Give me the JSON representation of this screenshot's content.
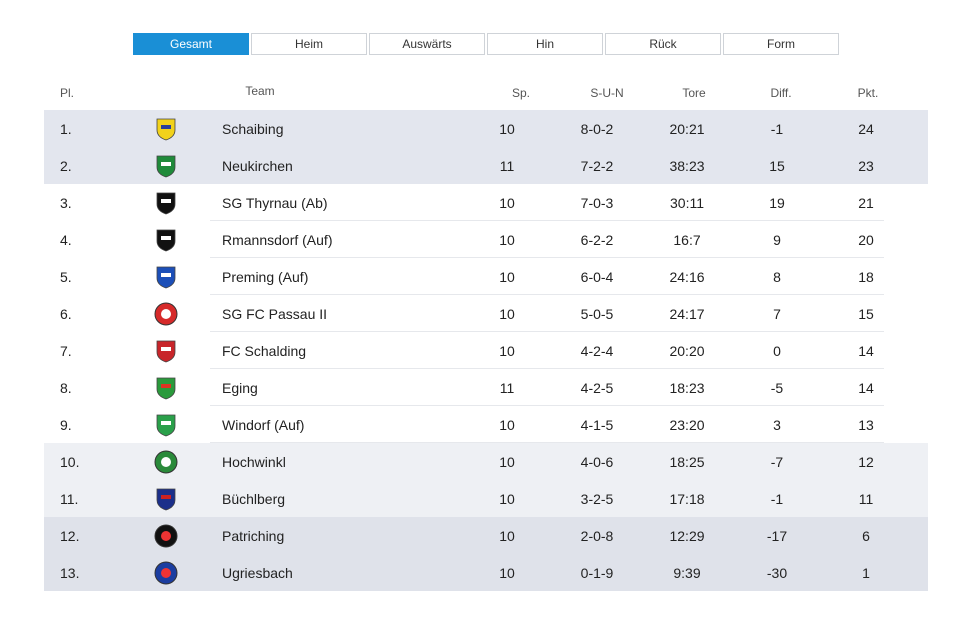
{
  "tabs": [
    "Gesamt",
    "Heim",
    "Auswärts",
    "Hin",
    "Rück",
    "Form"
  ],
  "table": {
    "header": [
      "Pl.",
      "Team",
      "Sp.",
      "S-U-N",
      "Tore",
      "Diff.",
      "Pkt."
    ],
    "rows": [
      [
        "1.",
        "Schaibing",
        "10",
        "8-0-2",
        "20:21",
        "-1",
        "24"
      ],
      [
        "2.",
        "Neukirchen",
        "11",
        "7-2-2",
        "38:23",
        "15",
        "23"
      ],
      [
        "3.",
        "SG Thyrnau (Ab)",
        "10",
        "7-0-3",
        "30:11",
        "19",
        "21"
      ],
      [
        "4.",
        "Rmannsdorf (Auf)",
        "10",
        "6-2-2",
        "16:7",
        "9",
        "20"
      ],
      [
        "5.",
        "Preming (Auf)",
        "10",
        "6-0-4",
        "24:16",
        "8",
        "18"
      ],
      [
        "6.",
        "SG FC Passau II",
        "10",
        "5-0-5",
        "24:17",
        "7",
        "15"
      ],
      [
        "7.",
        "FC Schalding",
        "10",
        "4-2-4",
        "20:20",
        "0",
        "14"
      ],
      [
        "8.",
        "Eging",
        "11",
        "4-2-5",
        "18:23",
        "-5",
        "14"
      ],
      [
        "9.",
        "Windorf (Auf)",
        "10",
        "4-1-5",
        "23:20",
        "3",
        "13"
      ],
      [
        "10.",
        "Hochwinkl",
        "10",
        "4-0-6",
        "18:25",
        "-7",
        "12"
      ],
      [
        "11.",
        "Büchlberg",
        "10",
        "3-2-5",
        "17:18",
        "-1",
        "11"
      ],
      [
        "12.",
        "Patriching",
        "10",
        "2-0-8",
        "12:29",
        "-17",
        "6"
      ],
      [
        "13.",
        "Ugriesbach",
        "10",
        "0-1-9",
        "9:39",
        "-30",
        "1"
      ]
    ]
  }
}
